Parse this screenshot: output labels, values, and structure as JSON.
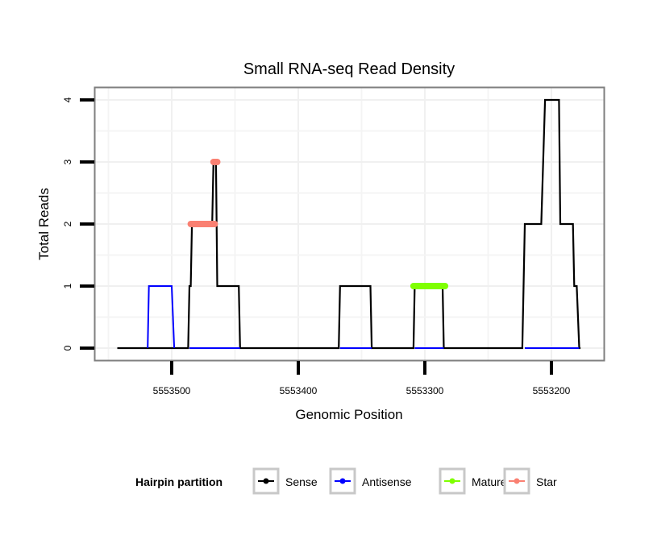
{
  "chart_data": {
    "type": "line",
    "title": "Small RNA-seq Read Density",
    "xlabel": "Genomic Position",
    "ylabel": "Total Reads",
    "x_reversed": true,
    "xlim": [
      5553562,
      5553159
    ],
    "ylim": [
      -0.2,
      4.2
    ],
    "x_ticks": [
      5553500,
      5553400,
      5553300,
      5553200
    ],
    "x_tick_labels": [
      "5553500",
      "5553400",
      "5553300",
      "5553200"
    ],
    "y_ticks": [
      0,
      1,
      2,
      3,
      4
    ],
    "y_tick_labels": [
      "0",
      "1",
      "2",
      "3",
      "4"
    ],
    "grid": true,
    "legend": {
      "title": "Hairpin partition",
      "position": "bottom",
      "entries": [
        {
          "name": "Sense",
          "color": "#000000"
        },
        {
          "name": "Antisense",
          "color": "#0000ff"
        },
        {
          "name": "Mature",
          "color": "#7fff00"
        },
        {
          "name": "Star",
          "color": "#fa8072"
        }
      ]
    },
    "series": [
      {
        "name": "Sense",
        "color": "#000000",
        "points": [
          [
            5553543,
            0
          ],
          [
            5553487,
            0
          ],
          [
            5553486,
            1
          ],
          [
            5553485,
            1
          ],
          [
            5553484,
            2
          ],
          [
            5553468,
            2
          ],
          [
            5553467,
            3
          ],
          [
            5553465,
            3
          ],
          [
            5553464,
            1
          ],
          [
            5553447,
            1
          ],
          [
            5553446,
            0
          ],
          [
            5553368,
            0
          ],
          [
            5553367,
            1
          ],
          [
            5553343,
            1
          ],
          [
            5553342,
            0
          ],
          [
            5553309,
            0
          ],
          [
            5553308,
            1
          ],
          [
            5553286,
            1
          ],
          [
            5553285,
            0
          ],
          [
            5553223,
            0
          ],
          [
            5553221,
            2
          ],
          [
            5553208,
            2
          ],
          [
            5553205,
            4
          ],
          [
            5553194,
            4
          ],
          [
            5553193,
            2
          ],
          [
            5553183,
            2
          ],
          [
            5553182,
            1
          ],
          [
            5553180,
            1
          ],
          [
            5553178,
            0
          ],
          [
            5553177,
            0
          ]
        ]
      },
      {
        "name": "Antisense",
        "color": "#0000ff",
        "points": [
          [
            5553519,
            0
          ],
          [
            5553518,
            1
          ],
          [
            5553500,
            1
          ],
          [
            5553498,
            0
          ]
        ],
        "extra_segments": [
          [
            [
              5553486,
              0
            ],
            [
              5553446,
              0
            ]
          ],
          [
            [
              5553367,
              0
            ],
            [
              5553342,
              0
            ]
          ],
          [
            [
              5553308,
              0
            ],
            [
              5553285,
              0
            ]
          ],
          [
            [
              5553221,
              0
            ],
            [
              5553178,
              0
            ]
          ]
        ]
      },
      {
        "name": "Mature",
        "color": "#7fff00",
        "segments": [
          [
            [
              5553309,
              1
            ],
            [
              5553284,
              1
            ]
          ]
        ]
      },
      {
        "name": "Star",
        "color": "#fa8072",
        "segments": [
          [
            [
              5553485,
              2
            ],
            [
              5553466,
              2
            ]
          ],
          [
            [
              5553467,
              3
            ],
            [
              5553464,
              3
            ]
          ]
        ]
      }
    ]
  }
}
